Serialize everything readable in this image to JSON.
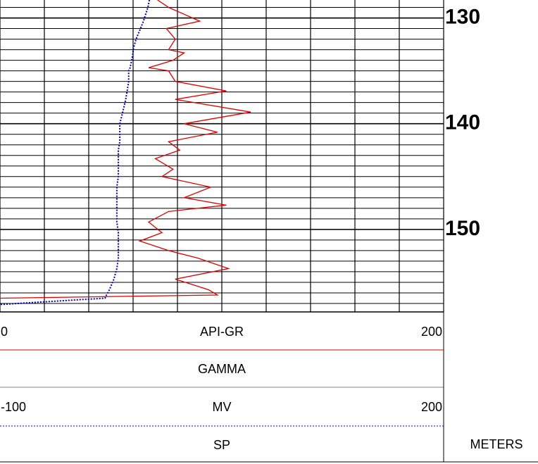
{
  "chart_data": {
    "type": "line",
    "orientation": "vertical",
    "y_label": "METERS",
    "ylim": [
      128.3,
      157.8
    ],
    "yticks": [
      130,
      140,
      150
    ],
    "ygrid": [
      129,
      130,
      131,
      132,
      133,
      134,
      135,
      136,
      137,
      138,
      139,
      140,
      141,
      142,
      143,
      144,
      145,
      146,
      147,
      148,
      149,
      150,
      151,
      152,
      153,
      154,
      155,
      156,
      157
    ],
    "xgrid": [
      0,
      20,
      40,
      60,
      80,
      100,
      120,
      140,
      160,
      180,
      200
    ],
    "x": [
      128.3,
      129.0,
      130.3,
      131.0,
      132.0,
      133.0,
      133.3,
      134.0,
      134.7,
      135.0,
      136.0,
      136.9,
      137.7,
      138.9,
      140.0,
      140.8,
      141.7,
      142.5,
      143.3,
      144.3,
      145.0,
      146.0,
      147.0,
      147.7,
      148.3,
      149.3,
      150.3,
      151.1,
      152.0,
      152.7,
      153.7,
      154.7,
      155.7,
      156.2,
      156.5,
      157.1
    ],
    "series": [
      {
        "name": "GAMMA",
        "unit": "API-GR",
        "color": "#dd0000",
        "style": "solid",
        "xlim": [
          0,
          200
        ],
        "values": [
          71,
          76,
          90,
          75,
          79,
          76,
          83,
          78,
          67,
          76,
          79,
          102,
          79,
          113,
          83,
          98,
          76,
          81,
          70,
          78,
          73,
          95,
          83,
          102,
          76,
          67,
          73,
          63,
          76,
          89,
          103,
          79,
          94,
          98,
          0,
          null
        ]
      },
      {
        "name": "SP",
        "unit": "MV",
        "color": "#0000cc",
        "style": "dotted",
        "xlim": [
          -100,
          200
        ],
        "values": [
          1,
          0,
          -3,
          -5,
          -8,
          -10,
          -10,
          -11,
          -12,
          -13,
          -13,
          -14,
          -15,
          -17,
          -19,
          -19,
          -19,
          -20,
          -20,
          -20,
          -20,
          -21,
          -21,
          -21,
          -21,
          -21,
          -20,
          -20,
          -20,
          -20,
          -21,
          -23,
          -26,
          -28,
          -29,
          -100
        ]
      }
    ]
  }
}
